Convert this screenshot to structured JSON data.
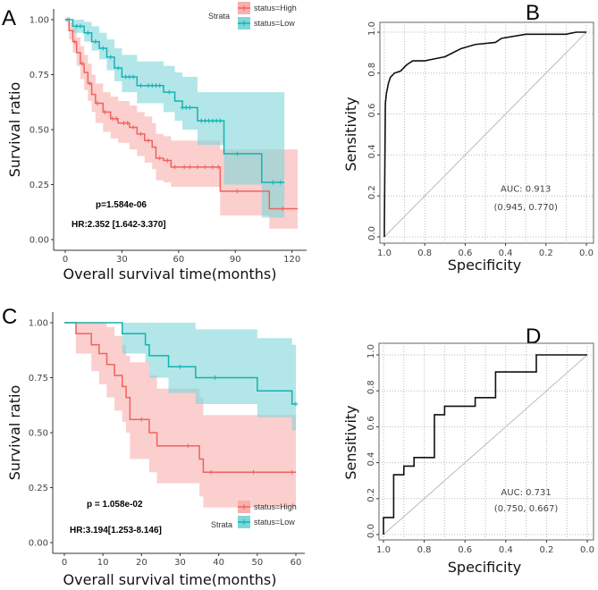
{
  "panel_labels": [
    "A",
    "B",
    "C",
    "D"
  ],
  "colors": {
    "high": "#F0625E",
    "low": "#13B3B3",
    "high_band": "#F8AFAD",
    "low_band": "#7ED6D9",
    "roc": "#111111"
  },
  "chart_data": [
    {
      "type": "line",
      "kind": "kaplan-meier",
      "panel": "A",
      "xlabel": "Overall survival time(months)",
      "ylabel": "Survival ratio",
      "xlim": [
        0,
        123
      ],
      "ylim": [
        0,
        1
      ],
      "xticks": [
        0,
        30,
        60,
        90,
        120
      ],
      "yticks": [
        "0.00",
        "0.25",
        "0.50",
        "0.75",
        "1.00"
      ],
      "legend": {
        "title": "Strata",
        "placement": "top-right",
        "entries": [
          "status=High",
          "status=Low"
        ]
      },
      "annotations": [
        "p=1.584e-06",
        "HR:2.352 [1.642-3.370]"
      ],
      "series": [
        {
          "name": "status=High",
          "t": [
            0,
            2,
            4,
            6,
            8,
            10,
            12,
            14,
            16,
            20,
            24,
            28,
            34,
            38,
            42,
            46,
            48,
            52,
            56,
            82,
            108,
            123
          ],
          "s": [
            1,
            0.95,
            0.9,
            0.85,
            0.8,
            0.76,
            0.71,
            0.66,
            0.62,
            0.58,
            0.55,
            0.53,
            0.51,
            0.48,
            0.45,
            0.42,
            0.37,
            0.36,
            0.33,
            0.22,
            0.14,
            0.14
          ],
          "lower": [
            1,
            0.91,
            0.85,
            0.79,
            0.73,
            0.68,
            0.63,
            0.58,
            0.53,
            0.49,
            0.46,
            0.44,
            0.41,
            0.38,
            0.35,
            0.32,
            0.27,
            0.26,
            0.24,
            0.11,
            0.05,
            0.05
          ],
          "upper": [
            1,
            0.99,
            0.96,
            0.92,
            0.88,
            0.84,
            0.8,
            0.75,
            0.71,
            0.67,
            0.65,
            0.63,
            0.61,
            0.58,
            0.56,
            0.53,
            0.48,
            0.47,
            0.45,
            0.41,
            0.41,
            0.41
          ],
          "censor": [
            1,
            5,
            9,
            13,
            17,
            21,
            25,
            27,
            31,
            33,
            36,
            40,
            44,
            50,
            54,
            58,
            63,
            66,
            70,
            74,
            78,
            81,
            91,
            115
          ]
        },
        {
          "name": "status=Low",
          "t": [
            0,
            4,
            10,
            14,
            18,
            22,
            26,
            30,
            38,
            52,
            58,
            62,
            70,
            84,
            104,
            116
          ],
          "s": [
            1,
            0.97,
            0.94,
            0.9,
            0.87,
            0.83,
            0.78,
            0.74,
            0.7,
            0.67,
            0.63,
            0.6,
            0.54,
            0.39,
            0.26,
            0.26
          ],
          "lower": [
            1,
            0.94,
            0.9,
            0.86,
            0.82,
            0.77,
            0.72,
            0.67,
            0.62,
            0.58,
            0.54,
            0.5,
            0.43,
            0.25,
            0.1,
            0.1
          ],
          "upper": [
            1,
            1,
            0.99,
            0.97,
            0.94,
            0.91,
            0.87,
            0.84,
            0.81,
            0.79,
            0.76,
            0.74,
            0.67,
            0.67,
            0.67,
            0.67
          ],
          "censor": [
            2,
            6,
            8,
            12,
            16,
            20,
            24,
            28,
            32,
            34,
            36,
            40,
            44,
            46,
            48,
            50,
            55,
            62,
            64,
            66,
            72,
            74,
            76,
            78,
            80,
            82,
            91,
            110,
            114
          ]
        }
      ]
    },
    {
      "type": "line",
      "kind": "roc",
      "panel": "B",
      "xlabel": "Specificity",
      "ylabel": "Sensitivity",
      "xlim": [
        1,
        0
      ],
      "ylim": [
        0,
        1
      ],
      "xticks": [
        "1.0",
        "0.8",
        "0.6",
        "0.4",
        "0.2",
        "0.0"
      ],
      "yticks": [
        "0.0",
        "0.2",
        "0.4",
        "0.6",
        "0.8",
        "1.0"
      ],
      "grid": true,
      "annotations": [
        "AUC: 0.913",
        "(0.945, 0.770)"
      ],
      "specificity": [
        1,
        1,
        0.995,
        0.99,
        0.98,
        0.97,
        0.95,
        0.92,
        0.89,
        0.86,
        0.8,
        0.75,
        0.7,
        0.62,
        0.55,
        0.45,
        0.42,
        0.3,
        0.1,
        0.05,
        0
      ],
      "sensitivity": [
        0,
        0.05,
        0.65,
        0.7,
        0.75,
        0.78,
        0.8,
        0.81,
        0.84,
        0.86,
        0.86,
        0.87,
        0.88,
        0.92,
        0.94,
        0.95,
        0.97,
        0.99,
        0.99,
        1,
        1
      ]
    },
    {
      "type": "line",
      "kind": "kaplan-meier",
      "panel": "C",
      "xlabel": "Overall survival time(months)",
      "ylabel": "Survival ratio",
      "xlim": [
        0,
        60
      ],
      "ylim": [
        0,
        1
      ],
      "xticks": [
        0,
        10,
        20,
        30,
        40,
        50,
        60
      ],
      "yticks": [
        "0.00",
        "0.25",
        "0.50",
        "0.75",
        "1.00"
      ],
      "legend": {
        "title": "Strata",
        "placement": "bottom-right",
        "entries": [
          "status=High",
          "status=Low"
        ]
      },
      "annotations": [
        "p = 1.058e-02",
        "HR:3.194[1.253-8.146]"
      ],
      "series": [
        {
          "name": "status=High",
          "t": [
            0,
            3,
            7,
            9,
            11,
            13,
            15,
            16,
            17,
            22,
            24,
            35,
            36,
            60
          ],
          "s": [
            1,
            0.95,
            0.9,
            0.86,
            0.81,
            0.76,
            0.71,
            0.66,
            0.56,
            0.5,
            0.44,
            0.38,
            0.32,
            0.32
          ],
          "lower": [
            1,
            0.86,
            0.78,
            0.72,
            0.66,
            0.6,
            0.55,
            0.5,
            0.38,
            0.32,
            0.27,
            0.21,
            0.16,
            0.16
          ],
          "upper": [
            1,
            1,
            1,
            1,
            0.98,
            0.94,
            0.9,
            0.85,
            0.82,
            0.76,
            0.7,
            0.66,
            0.58,
            0.51
          ],
          "censor": [
            20,
            32,
            38,
            49,
            59
          ]
        },
        {
          "name": "status=Low",
          "t": [
            0,
            15,
            21,
            22,
            27,
            34,
            50,
            59,
            60
          ],
          "s": [
            1,
            0.95,
            0.9,
            0.85,
            0.8,
            0.75,
            0.69,
            0.63,
            0.63
          ],
          "lower": [
            1,
            0.86,
            0.82,
            0.75,
            0.68,
            0.63,
            0.57,
            0.51,
            0.45
          ],
          "upper": [
            1,
            1,
            1,
            1,
            1,
            0.97,
            0.93,
            0.9,
            0.88
          ],
          "censor": [
            30,
            39,
            60
          ]
        }
      ]
    },
    {
      "type": "line",
      "kind": "roc",
      "panel": "D",
      "xlabel": "Specificity",
      "ylabel": "Sensitivity",
      "xlim": [
        1,
        0
      ],
      "ylim": [
        0,
        1
      ],
      "xticks": [
        "1.0",
        "0.8",
        "0.6",
        "0.4",
        "0.2",
        "0.0"
      ],
      "yticks": [
        "0.0",
        "0.2",
        "0.4",
        "0.6",
        "0.8",
        "1.0"
      ],
      "grid": true,
      "annotations": [
        "AUC: 0.731",
        "(0.750, 0.667)"
      ],
      "specificity": [
        1,
        1,
        0.95,
        0.95,
        0.9,
        0.9,
        0.85,
        0.85,
        0.75,
        0.75,
        0.7,
        0.7,
        0.55,
        0.55,
        0.45,
        0.45,
        0.25,
        0.25,
        0
      ],
      "sensitivity": [
        0,
        0.095,
        0.095,
        0.333,
        0.333,
        0.381,
        0.381,
        0.429,
        0.429,
        0.667,
        0.667,
        0.714,
        0.714,
        0.762,
        0.762,
        0.905,
        0.905,
        1,
        1
      ]
    }
  ]
}
